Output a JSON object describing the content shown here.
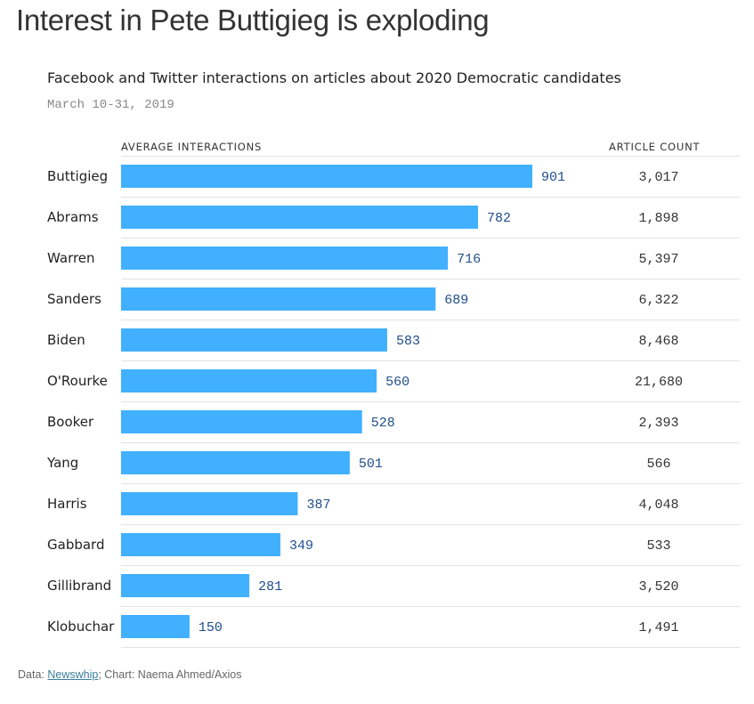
{
  "headline": "Interest in Pete Buttigieg is exploding",
  "colors": {
    "bar": "#40b0ff",
    "value_text": "#1f4e8c",
    "rule": "#e3e3e3"
  },
  "chart_data": {
    "type": "bar",
    "orientation": "horizontal",
    "title": "Facebook and Twitter interactions on articles about 2020 Democratic candidates",
    "subtitle": "March 10-31, 2019",
    "column_headers": {
      "values": "AVERAGE INTERACTIONS",
      "counts": "ARTICLE COUNT"
    },
    "categories": [
      "Buttigieg",
      "Abrams",
      "Warren",
      "Sanders",
      "Biden",
      "O'Rourke",
      "Booker",
      "Yang",
      "Harris",
      "Gabbard",
      "Gillibrand",
      "Klobuchar"
    ],
    "values": [
      901,
      782,
      716,
      689,
      583,
      560,
      528,
      501,
      387,
      349,
      281,
      150
    ],
    "article_counts": [
      "3,017",
      "1,898",
      "5,397",
      "6,322",
      "8,468",
      "21,680",
      "2,393",
      "566",
      "4,048",
      "533",
      "3,520",
      "1,491"
    ],
    "xlim": [
      0,
      901
    ]
  },
  "footer": {
    "prefix": "Data: ",
    "source_link": "Newswhip",
    "suffix": "; Chart: Naema Ahmed/Axios"
  }
}
